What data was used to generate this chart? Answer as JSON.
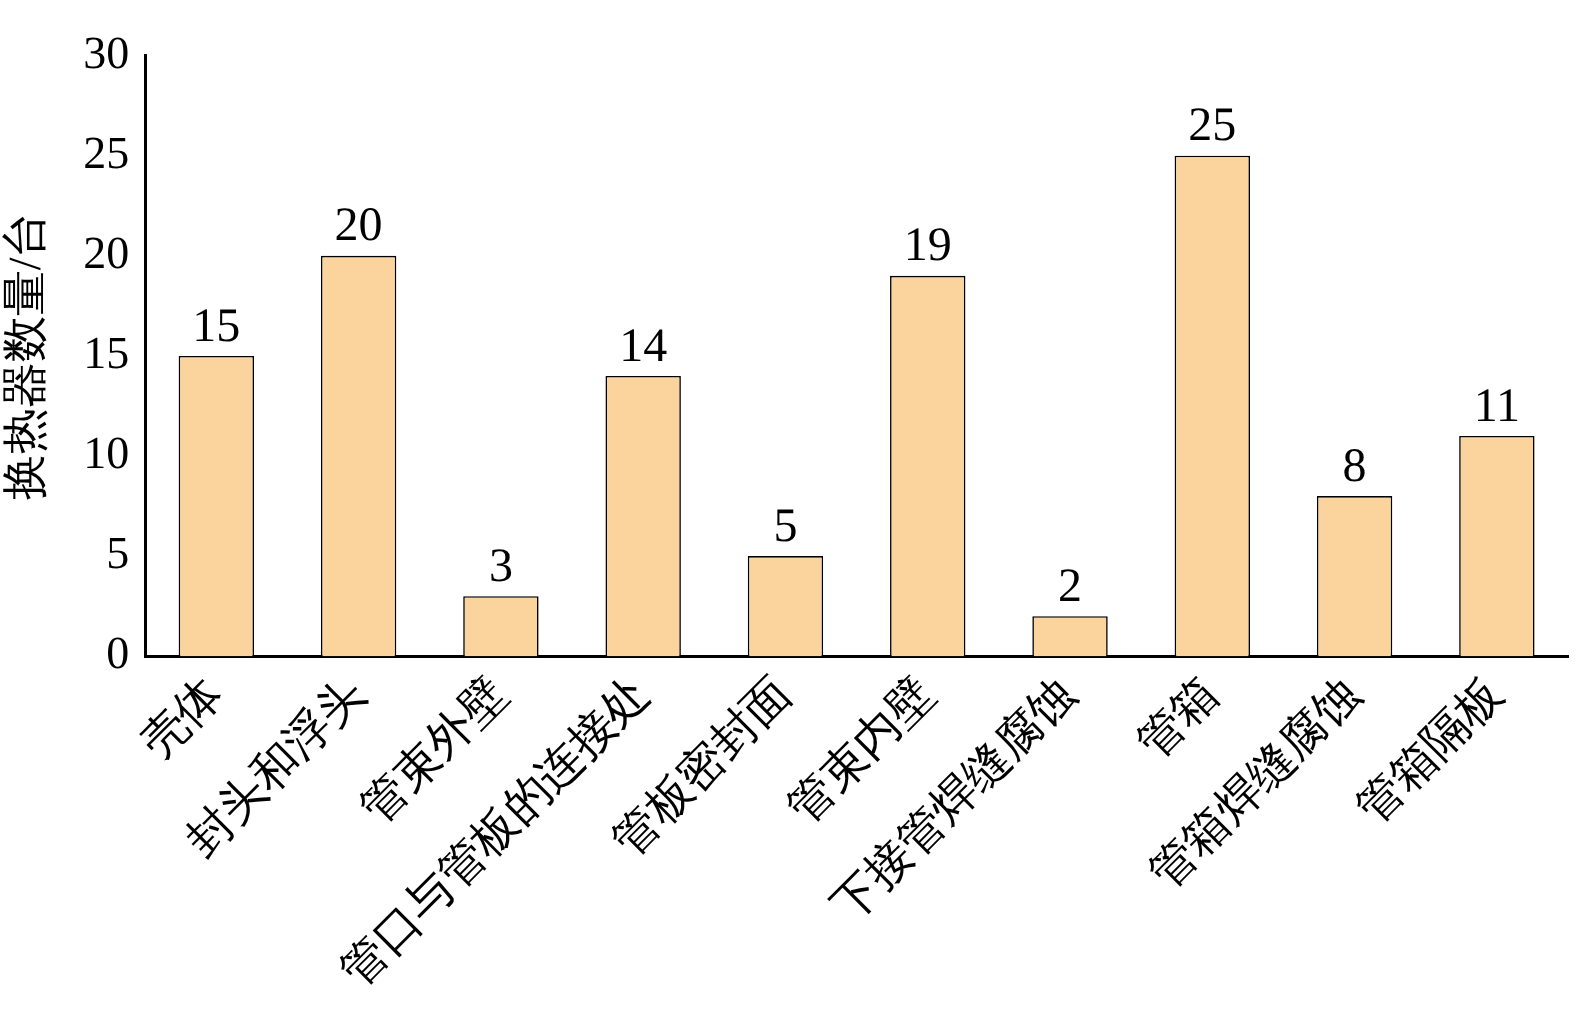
{
  "chart_data": {
    "type": "bar",
    "ylabel": "换热器数量/台",
    "categories": [
      "壳体",
      "封头和浮头",
      "管束外壁",
      "管口与管板的连接处",
      "管板密封面",
      "管束内壁",
      "下接管焊缝腐蚀",
      "管箱",
      "管箱焊缝腐蚀",
      "管箱隔板"
    ],
    "values": [
      15,
      20,
      3,
      14,
      5,
      19,
      2,
      25,
      8,
      11
    ],
    "color": "#fad49c",
    "ylim": [
      0,
      30
    ],
    "yticks": [
      0,
      5,
      10,
      15,
      20,
      25,
      30
    ],
    "data_labels": true,
    "grid": false,
    "legend": false
  }
}
